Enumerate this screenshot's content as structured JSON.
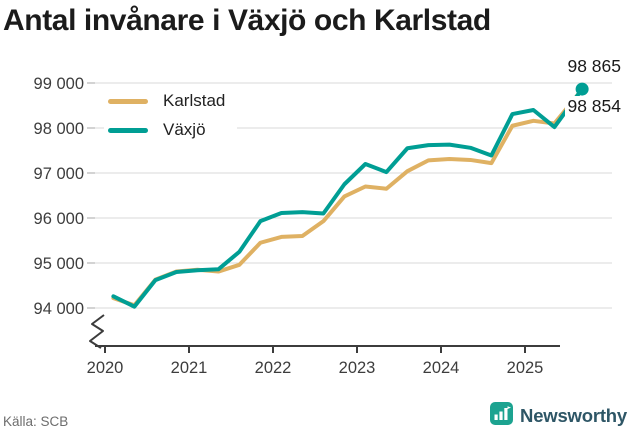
{
  "title": "Antal invånare i Växjö och Karlstad",
  "source": "Källa: SCB",
  "brand": {
    "name": "Newsworthy",
    "icon": "bar-chart-flag-icon",
    "icon_color": "#1CA390",
    "text_color": "#2E5666"
  },
  "chart_data": {
    "type": "line",
    "title": "Antal invånare i Växjö och Karlstad",
    "xlabel": "",
    "ylabel": "",
    "grid": true,
    "legend_position": "top-left",
    "axis_break": true,
    "ylim": [
      94000,
      99000
    ],
    "x_axis": {
      "ticks": [
        2020,
        2021,
        2022,
        2023,
        2024,
        2025
      ],
      "tick_labels": [
        "2020",
        "2021",
        "2022",
        "2023",
        "2024",
        "2025"
      ]
    },
    "y_axis": {
      "tick_values": [
        94000,
        95000,
        96000,
        97000,
        98000,
        99000
      ],
      "tick_labels": [
        "94 000",
        "95 000",
        "96 000",
        "97 000",
        "98 000",
        "99 000"
      ]
    },
    "x_unit": "decimal_year_quarterly",
    "series": [
      {
        "name": "Karlstad",
        "slug": "karlstad",
        "color": "#DFB163",
        "x": [
          2020.1,
          2020.35,
          2020.6,
          2020.85,
          2021.1,
          2021.35,
          2021.6,
          2021.85,
          2022.1,
          2022.35,
          2022.6,
          2022.85,
          2023.1,
          2023.35,
          2023.6,
          2023.85,
          2024.1,
          2024.35,
          2024.6,
          2024.85,
          2025.1,
          2025.35,
          2025.68
        ],
        "values": [
          94220,
          94060,
          94630,
          94810,
          94850,
          94810,
          94960,
          95450,
          95580,
          95600,
          95930,
          96480,
          96700,
          96650,
          97040,
          97280,
          97310,
          97290,
          97220,
          98050,
          98160,
          98100,
          98854
        ]
      },
      {
        "name": "Växjö",
        "slug": "vaxjo",
        "color": "#009E94",
        "end_dot": true,
        "x": [
          2020.1,
          2020.35,
          2020.6,
          2020.85,
          2021.1,
          2021.35,
          2021.6,
          2021.85,
          2022.1,
          2022.35,
          2022.6,
          2022.85,
          2023.1,
          2023.35,
          2023.6,
          2023.85,
          2024.1,
          2024.35,
          2024.6,
          2024.85,
          2025.1,
          2025.35,
          2025.68
        ],
        "values": [
          94260,
          94030,
          94620,
          94800,
          94840,
          94860,
          95250,
          95930,
          96110,
          96130,
          96100,
          96750,
          97200,
          97020,
          97550,
          97620,
          97630,
          97560,
          97390,
          98310,
          98400,
          98020,
          98865
        ]
      }
    ],
    "end_labels": [
      {
        "series": "Växjö",
        "text": "98 865",
        "value": 98865
      },
      {
        "series": "Karlstad",
        "text": "98 854",
        "value": 98854
      }
    ]
  }
}
